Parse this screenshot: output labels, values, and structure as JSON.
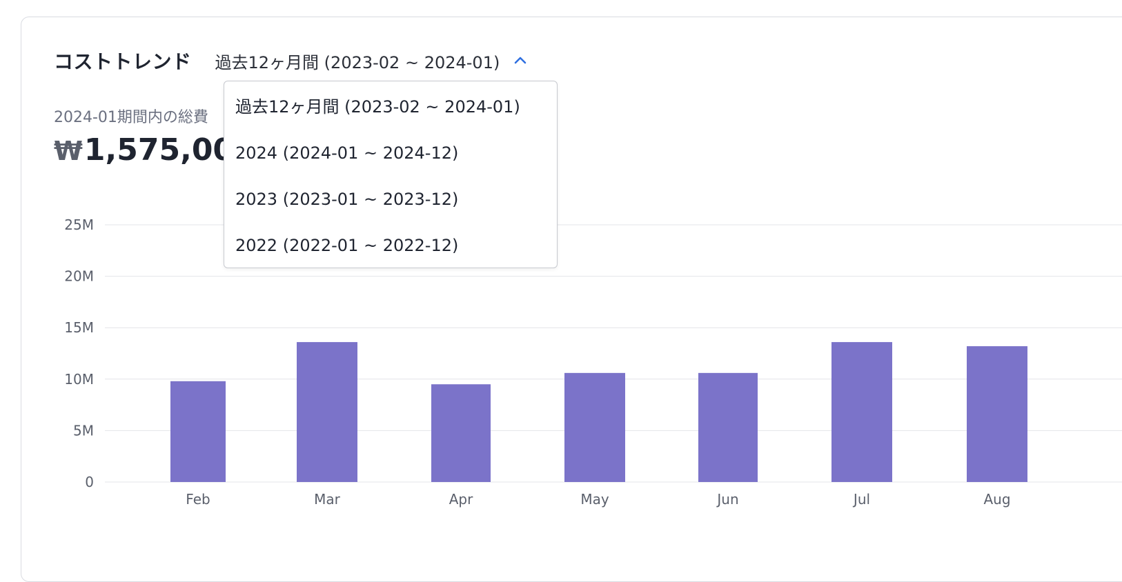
{
  "header": {
    "title": "コストトレンド",
    "selected_period": "過去12ヶ月間 (2023-02 ~ 2024-01)"
  },
  "summary": {
    "label": "2024-01期間内の総費",
    "currency": "₩",
    "value": "1,575,000"
  },
  "dropdown": {
    "options": [
      "過去12ヶ月間 (2023-02 ~ 2024-01)",
      "2024 (2024-01 ~ 2024-12)",
      "2023 (2023-01 ~ 2023-12)",
      "2022 (2022-01 ~ 2022-12)"
    ]
  },
  "colors": {
    "bar": "#7b73c9",
    "grid": "#e3e4e8",
    "accent": "#2f6fe0"
  },
  "icons": {
    "toggle": "chevron-up-icon"
  },
  "chart_data": {
    "type": "bar",
    "categories": [
      "Feb",
      "Mar",
      "Apr",
      "May",
      "Jun",
      "Jul",
      "Aug"
    ],
    "values": [
      9.8,
      13.6,
      9.5,
      10.6,
      10.6,
      13.6,
      13.2
    ],
    "y_unit": "M",
    "ylim": [
      0,
      25
    ],
    "y_ticks": [
      "0",
      "5M",
      "10M",
      "15M",
      "20M",
      "25M"
    ],
    "grid": true,
    "legend": "none"
  }
}
